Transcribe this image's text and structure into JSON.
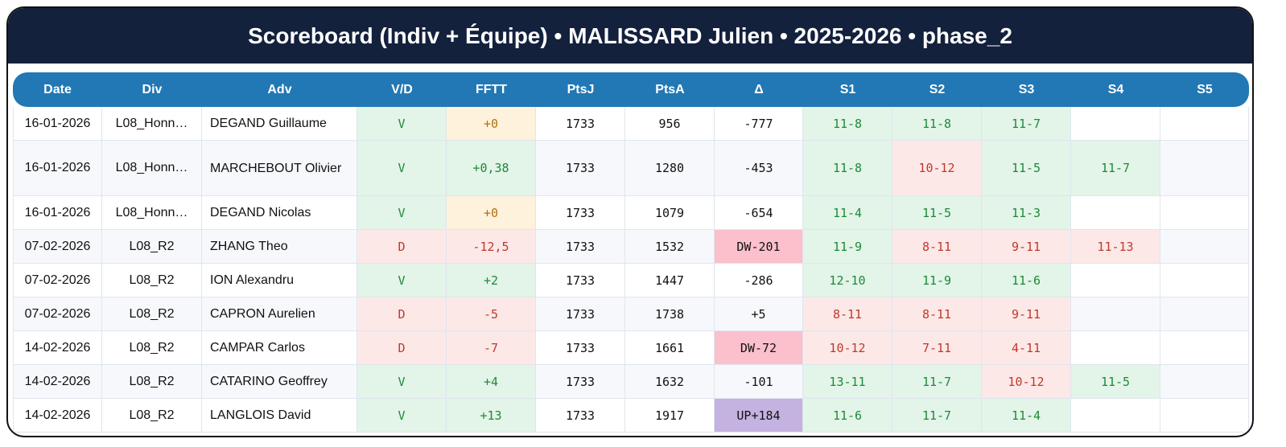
{
  "title": "Scoreboard (Indiv + Équipe) • MALISSARD Julien • 2025-2026 • phase_2",
  "columns": [
    "Date",
    "Div",
    "Adv",
    "V/D",
    "FFTT",
    "PtsJ",
    "PtsA",
    "Δ",
    "S1",
    "S2",
    "S3",
    "S4",
    "S5"
  ],
  "colors": {
    "header": "#2178b4",
    "title_bar": "#14213d",
    "win_bg": "#e3f4e8",
    "win_text": "#1e8a3a",
    "loss_bg": "#fde8e8",
    "loss_text": "#c0392b",
    "neutral_bg": "#fff2dc",
    "dw_bg": "#fbc0cc",
    "up_bg": "#c4b2e0"
  },
  "rows": [
    {
      "date": "16-01-2026",
      "div": "L08_Honn…",
      "adv": "DEGAND Guillaume",
      "vd": "V",
      "fftt": "+0",
      "ptsj": "1733",
      "ptsa": "956",
      "delta": "-777",
      "sets": [
        "11-8",
        "11-8",
        "11-7",
        "",
        ""
      ]
    },
    {
      "date": "16-01-2026",
      "div": "L08_Honn…",
      "adv": "MARCHEBOUT Olivier",
      "vd": "V",
      "fftt": "+0,38",
      "ptsj": "1733",
      "ptsa": "1280",
      "delta": "-453",
      "sets": [
        "11-8",
        "10-12",
        "11-5",
        "11-7",
        ""
      ]
    },
    {
      "date": "16-01-2026",
      "div": "L08_Honn…",
      "adv": "DEGAND Nicolas",
      "vd": "V",
      "fftt": "+0",
      "ptsj": "1733",
      "ptsa": "1079",
      "delta": "-654",
      "sets": [
        "11-4",
        "11-5",
        "11-3",
        "",
        ""
      ]
    },
    {
      "date": "07-02-2026",
      "div": "L08_R2",
      "adv": "ZHANG Theo",
      "vd": "D",
      "fftt": "-12,5",
      "ptsj": "1733",
      "ptsa": "1532",
      "delta": "DW-201",
      "sets": [
        "11-9",
        "8-11",
        "9-11",
        "11-13",
        ""
      ]
    },
    {
      "date": "07-02-2026",
      "div": "L08_R2",
      "adv": "ION Alexandru",
      "vd": "V",
      "fftt": "+2",
      "ptsj": "1733",
      "ptsa": "1447",
      "delta": "-286",
      "sets": [
        "12-10",
        "11-9",
        "11-6",
        "",
        ""
      ]
    },
    {
      "date": "07-02-2026",
      "div": "L08_R2",
      "adv": "CAPRON Aurelien",
      "vd": "D",
      "fftt": "-5",
      "ptsj": "1733",
      "ptsa": "1738",
      "delta": "+5",
      "sets": [
        "8-11",
        "8-11",
        "9-11",
        "",
        ""
      ]
    },
    {
      "date": "14-02-2026",
      "div": "L08_R2",
      "adv": "CAMPAR Carlos",
      "vd": "D",
      "fftt": "-7",
      "ptsj": "1733",
      "ptsa": "1661",
      "delta": "DW-72",
      "sets": [
        "10-12",
        "7-11",
        "4-11",
        "",
        ""
      ]
    },
    {
      "date": "14-02-2026",
      "div": "L08_R2",
      "adv": "CATARINO Geoffrey",
      "vd": "V",
      "fftt": "+4",
      "ptsj": "1733",
      "ptsa": "1632",
      "delta": "-101",
      "sets": [
        "13-11",
        "11-7",
        "10-12",
        "11-5",
        ""
      ]
    },
    {
      "date": "14-02-2026",
      "div": "L08_R2",
      "adv": "LANGLOIS David",
      "vd": "V",
      "fftt": "+13",
      "ptsj": "1733",
      "ptsa": "1917",
      "delta": "UP+184",
      "sets": [
        "11-6",
        "11-7",
        "11-4",
        "",
        ""
      ]
    }
  ]
}
